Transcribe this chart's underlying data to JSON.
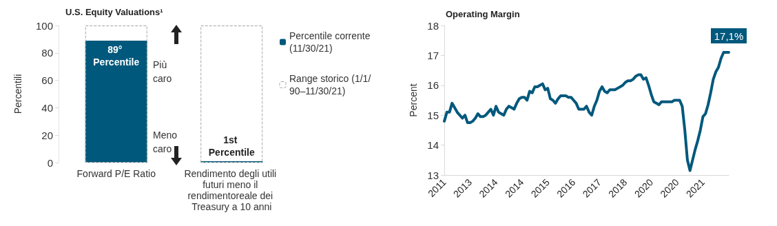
{
  "chart_data": [
    {
      "type": "bar",
      "title": "U.S. Equity Valuations¹",
      "ylabel": "Percentili",
      "categories": [
        "Forward P/E Ratio",
        "Rendimento degli utili futuri meno il rendimentoreale dei Treasury a 10 anni"
      ],
      "series": [
        {
          "name": "Range storico (1/1/90–11/30/21)",
          "color": "#a6a6a6",
          "line_style": "dashed",
          "values": [
            100,
            100
          ]
        },
        {
          "name": "Percentile corrente (11/30/21)",
          "color": "#00587c",
          "values": [
            89,
            1
          ],
          "value_labels": [
            "89° Percentile",
            "1st Percentile"
          ]
        }
      ],
      "ylim": [
        0,
        100
      ],
      "yticks": [
        0,
        20,
        40,
        60,
        80,
        100
      ],
      "grid": false,
      "legend": "right",
      "annotations": [
        "Più caro",
        "Meno caro"
      ]
    },
    {
      "type": "line",
      "title": "Operating Margin",
      "ylabel": "Percent",
      "categories": [
        "2011",
        null,
        null,
        null,
        null,
        null,
        null,
        null,
        null,
        null,
        "2013",
        null,
        null,
        null,
        null,
        null,
        null,
        null,
        null,
        null,
        "2014",
        null,
        null,
        null,
        null,
        null,
        null,
        null,
        null,
        null,
        "2014",
        null,
        null,
        null,
        null,
        null,
        null,
        null,
        null,
        null,
        "2015",
        null,
        null,
        null,
        null,
        null,
        null,
        null,
        null,
        null,
        "2016",
        null,
        null,
        null,
        null,
        null,
        null,
        null,
        null,
        null,
        "2017",
        null,
        null,
        null,
        null,
        null,
        null,
        null,
        null,
        null,
        "2018",
        null,
        null,
        null,
        null,
        null,
        null,
        null,
        null,
        null,
        "2020",
        null,
        null,
        null,
        null,
        null,
        null,
        null,
        null,
        null,
        "2020",
        null,
        null,
        null,
        null,
        null,
        null,
        null,
        null,
        null,
        "2021",
        null,
        null,
        null,
        null,
        null,
        null,
        null,
        null,
        null,
        null
      ],
      "series": [
        {
          "color": "#00587c",
          "values": [
            14.8,
            15.1,
            15.1,
            15.4,
            15.25,
            15.1,
            15.0,
            14.9,
            15.0,
            14.75,
            14.75,
            14.8,
            14.9,
            15.05,
            14.95,
            14.95,
            15.0,
            15.1,
            15.2,
            15.0,
            15.3,
            15.1,
            15.05,
            15.0,
            15.2,
            15.3,
            15.25,
            15.2,
            15.4,
            15.55,
            15.6,
            15.6,
            15.5,
            15.8,
            15.75,
            15.95,
            15.95,
            16.0,
            16.05,
            15.85,
            15.9,
            15.55,
            15.5,
            15.4,
            15.55,
            15.65,
            15.65,
            15.65,
            15.6,
            15.6,
            15.5,
            15.4,
            15.2,
            15.2,
            15.2,
            15.3,
            15.1,
            15.0,
            15.3,
            15.5,
            15.8,
            15.95,
            15.8,
            15.75,
            15.85,
            15.85,
            15.85,
            15.9,
            15.95,
            16.0,
            16.1,
            16.15,
            16.15,
            16.2,
            16.3,
            16.35,
            16.35,
            16.2,
            16.25,
            16.0,
            15.7,
            15.45,
            15.4,
            15.35,
            15.45,
            15.45,
            15.45,
            15.45,
            15.45,
            15.5,
            15.5,
            15.5,
            15.3,
            14.5,
            13.5,
            13.15,
            13.5,
            13.85,
            14.15,
            14.5,
            14.95,
            15.05,
            15.35,
            15.75,
            16.2,
            16.45,
            16.6,
            16.9,
            17.1,
            17.1,
            17.1
          ]
        }
      ],
      "ylim": [
        13,
        18
      ],
      "yticks": [
        13,
        14,
        15,
        16,
        17,
        18
      ],
      "grid": false,
      "legend": false,
      "marker": "none",
      "line_style": "solid",
      "annotations": [
        {
          "text": "17,1%",
          "y": 17.1
        }
      ]
    }
  ]
}
